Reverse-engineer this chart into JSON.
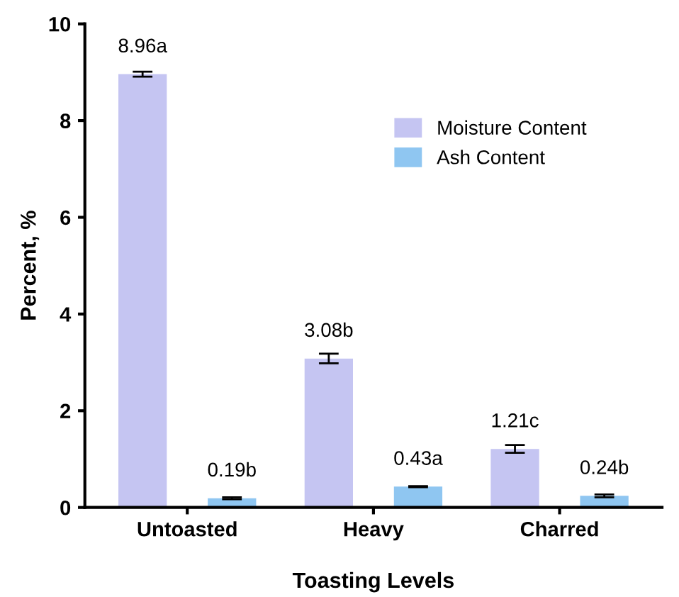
{
  "chart_data": {
    "type": "bar",
    "xlabel": "Toasting Levels",
    "ylabel": "Percent, %",
    "categories": [
      "Untoasted",
      "Heavy",
      "Charred"
    ],
    "series": [
      {
        "name": "Moisture Content",
        "color": "#c5c5f2",
        "values": [
          8.96,
          3.08,
          1.21
        ],
        "errors": [
          0.05,
          0.1,
          0.08
        ],
        "value_labels": [
          "8.96a",
          "3.08b",
          "1.21c"
        ]
      },
      {
        "name": "Ash Content",
        "color": "#8fc6f1",
        "values": [
          0.19,
          0.43,
          0.24
        ],
        "errors": [
          0.02,
          0.01,
          0.03
        ],
        "value_labels": [
          "0.19b",
          "0.43a",
          "0.24b"
        ]
      }
    ],
    "ylim": [
      0,
      10
    ],
    "yticks": [
      0,
      2,
      4,
      6,
      8,
      10
    ],
    "grid": false,
    "legend": "top right"
  }
}
